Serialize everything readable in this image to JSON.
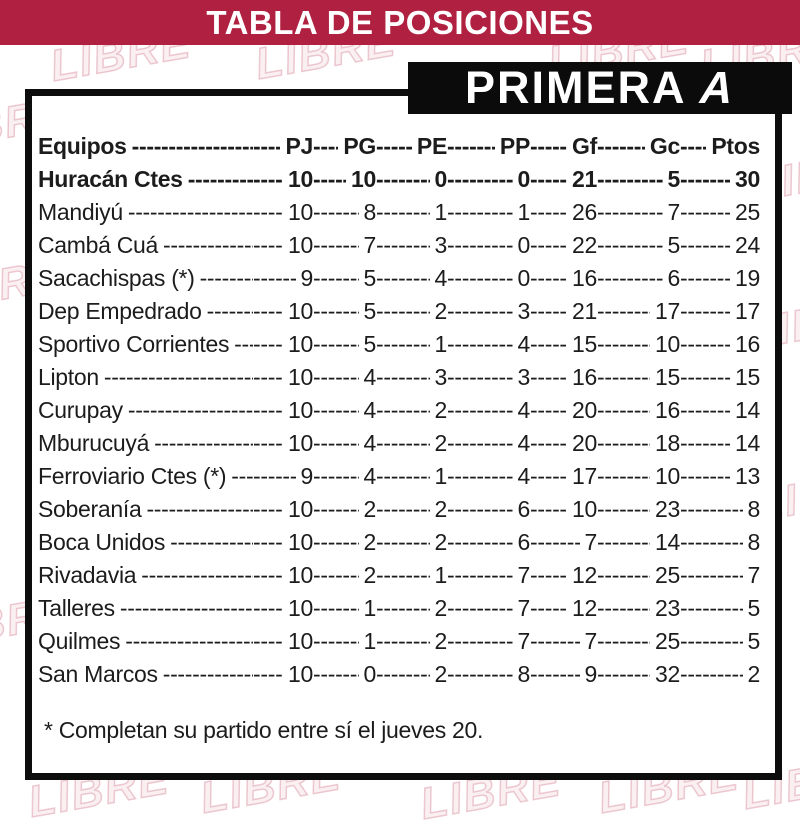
{
  "banner": {
    "title": "TABLA DE POSICIONES"
  },
  "league": {
    "name": "PRIMERA",
    "division": "A"
  },
  "colors": {
    "banner_bg": "#B02040",
    "league_box_bg": "#0B0B0B",
    "text": "#1C1C1C",
    "watermark": "#B2203E"
  },
  "leader_char": "-",
  "watermark": {
    "text": "LIBRE"
  },
  "footnote": "* Completan su partido entre sí el jueves 20.",
  "chart_data": {
    "type": "table",
    "title": "TABLA DE POSICIONES",
    "subtitle": "PRIMERA A",
    "columns": [
      "Equipos",
      "PJ",
      "PG",
      "PE",
      "PP",
      "Gf",
      "Gc",
      "Ptos"
    ],
    "highlight_row_index": 0,
    "rows": [
      [
        "Huracán Ctes",
        10,
        10,
        0,
        0,
        21,
        5,
        30
      ],
      [
        "Mandiyú",
        10,
        8,
        1,
        1,
        26,
        7,
        25
      ],
      [
        "Cambá Cuá",
        10,
        7,
        3,
        0,
        22,
        5,
        24
      ],
      [
        "Sacachispas (*)",
        9,
        5,
        4,
        0,
        16,
        6,
        19
      ],
      [
        "Dep Empedrado",
        10,
        5,
        2,
        3,
        21,
        17,
        17
      ],
      [
        "Sportivo Corrientes",
        10,
        5,
        1,
        4,
        15,
        10,
        16
      ],
      [
        "Lipton",
        10,
        4,
        3,
        3,
        16,
        15,
        15
      ],
      [
        "Curupay",
        10,
        4,
        2,
        4,
        20,
        16,
        14
      ],
      [
        "Mburucuyá",
        10,
        4,
        2,
        4,
        20,
        18,
        14
      ],
      [
        "Ferroviario Ctes (*)",
        9,
        4,
        1,
        4,
        17,
        10,
        13
      ],
      [
        "Soberanía",
        10,
        2,
        2,
        6,
        10,
        23,
        8
      ],
      [
        "Boca Unidos",
        10,
        2,
        2,
        6,
        7,
        14,
        8
      ],
      [
        "Rivadavia",
        10,
        2,
        1,
        7,
        12,
        25,
        7
      ],
      [
        "Talleres",
        10,
        1,
        2,
        7,
        12,
        23,
        5
      ],
      [
        "Quilmes",
        10,
        1,
        2,
        7,
        7,
        25,
        5
      ],
      [
        "San Marcos",
        10,
        0,
        2,
        8,
        9,
        32,
        2
      ]
    ],
    "footnote": "* Completan su partido entre sí el jueves 20."
  }
}
